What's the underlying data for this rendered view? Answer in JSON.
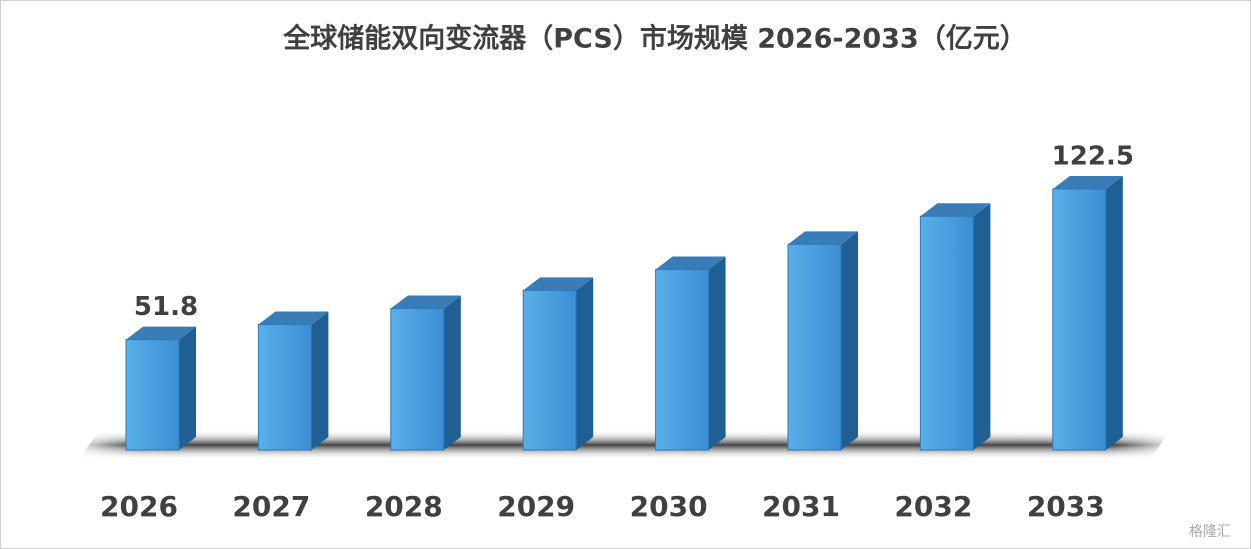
{
  "chart_data": {
    "type": "bar3d",
    "title": "全球储能双向变流器（PCS）市场规模 2026-2033（亿元）",
    "categories": [
      "2026",
      "2027",
      "2028",
      "2029",
      "2030",
      "2031",
      "2032",
      "2033"
    ],
    "values": [
      51.8,
      58.9,
      66.4,
      74.9,
      84.7,
      96.5,
      109.7,
      122.5
    ],
    "color": "#4a9fe0",
    "data_labels": "ends",
    "watermark": "格隆汇"
  }
}
